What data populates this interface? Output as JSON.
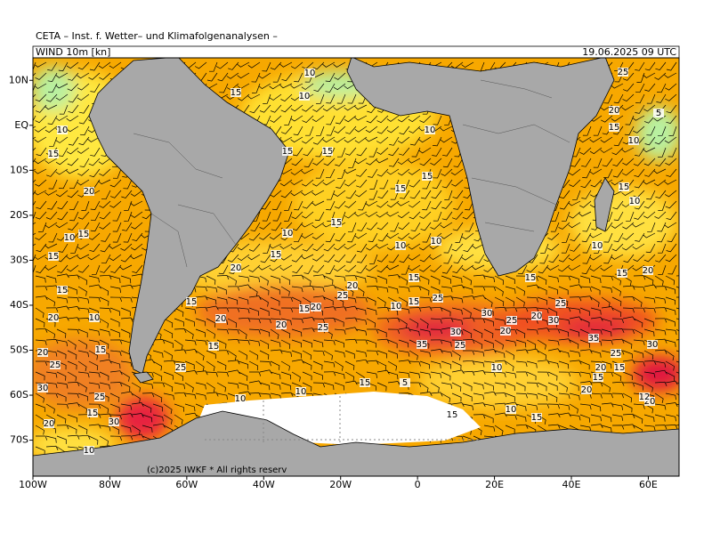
{
  "header": {
    "title": "CETA – Inst. f. Wetter– und Klimafolgenanalysen –",
    "field": "WIND 10m [kn]",
    "valid": "19.06.2025 09 UTC"
  },
  "copyright": "(c)2025 IWKF * All rights reserv",
  "map": {
    "xlim": [
      -100,
      68
    ],
    "ylim": [
      -78,
      15
    ],
    "xticks": [
      {
        "value": -100,
        "label": "100W"
      },
      {
        "value": -80,
        "label": "80W"
      },
      {
        "value": -60,
        "label": "60W"
      },
      {
        "value": -40,
        "label": "40W"
      },
      {
        "value": -20,
        "label": "20W"
      },
      0,
      {
        "value": 20,
        "label": "20E"
      },
      {
        "value": 40,
        "label": "40E"
      },
      {
        "value": 60,
        "label": "60E"
      }
    ],
    "yticks": [
      {
        "value": 10,
        "label": "10N"
      },
      {
        "value": 0,
        "label": "EQ"
      },
      {
        "value": -10,
        "label": "10S"
      },
      {
        "value": -20,
        "label": "20S"
      },
      {
        "value": -30,
        "label": "30S"
      },
      {
        "value": -40,
        "label": "40S"
      },
      {
        "value": -50,
        "label": "50S"
      },
      {
        "value": -60,
        "label": "60S"
      },
      {
        "value": -70,
        "label": "70S"
      }
    ]
  },
  "contour_labels": [
    "10",
    "15",
    "10",
    "10",
    "15",
    "15",
    "15",
    "10",
    "15",
    "15",
    "20",
    "10",
    "15",
    "15",
    "10",
    "15",
    "10",
    "10",
    "15",
    "20",
    "15",
    "20",
    "25",
    "15",
    "15",
    "25",
    "10",
    "15",
    "20",
    "20",
    "10",
    "15",
    "20",
    "20",
    "25",
    "30",
    "25",
    "20",
    "30",
    "25",
    "35",
    "30",
    "25",
    "20",
    "35",
    "30",
    "25",
    "15",
    "15",
    "20",
    "25",
    "25",
    "10",
    "20",
    "15",
    "15",
    "30",
    "25",
    "15",
    "5",
    "10",
    "10",
    "20",
    "20",
    "12",
    "15",
    "30",
    "20",
    "15",
    "10",
    "15",
    "10",
    "25",
    "20",
    "5",
    "15",
    "10",
    "15",
    "10",
    "10",
    "15",
    "20",
    "15"
  ]
}
